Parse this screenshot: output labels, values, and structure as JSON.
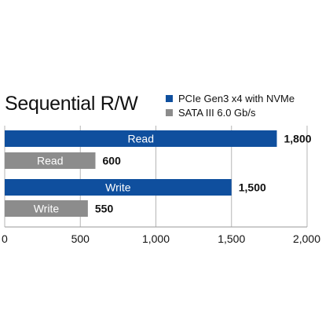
{
  "chart_data": {
    "type": "bar",
    "orientation": "horizontal",
    "title": "Sequential R/W",
    "categories": [
      "Read",
      "Write"
    ],
    "series": [
      {
        "name": "PCIe Gen3 x4 with NVMe",
        "color": "#0f4f9e",
        "values": [
          1800,
          1500
        ],
        "value_labels": [
          "1,800",
          "1,500"
        ]
      },
      {
        "name": "SATA III 6.0 Gb/s",
        "color": "#8c8c8c",
        "values": [
          600,
          550
        ],
        "value_labels": [
          "600",
          "550"
        ]
      }
    ],
    "xlim": [
      0,
      2000
    ],
    "ticks": [
      0,
      500,
      1000,
      1500,
      2000
    ],
    "tick_labels": [
      "0",
      "500",
      "1,000",
      "1,500",
      "2,000"
    ],
    "grid": true,
    "legend_position": "top-right"
  }
}
